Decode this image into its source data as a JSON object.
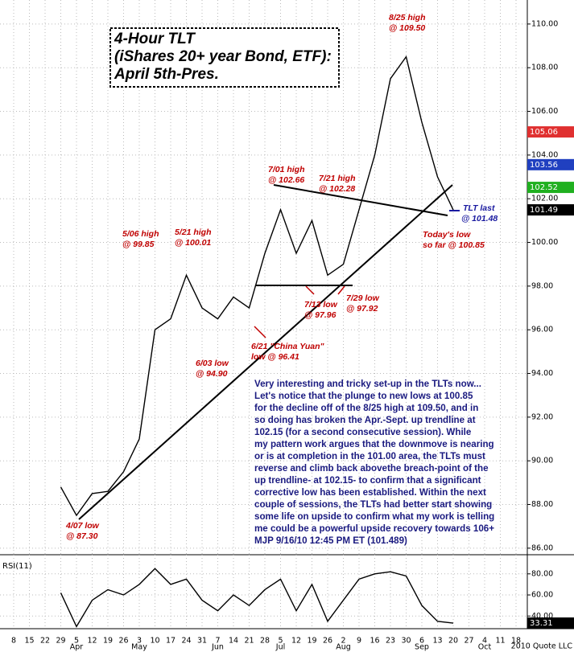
{
  "chart_data": {
    "type": "line",
    "title_lines": [
      "4-Hour TLT",
      "(iShares 20+ year Bond, ETF):",
      "April 5th-Pres."
    ],
    "categories": [
      "8",
      "15",
      "22",
      "29",
      "5",
      "12",
      "19",
      "26",
      "3",
      "10",
      "17",
      "24",
      "31",
      "7",
      "14",
      "21",
      "28",
      "5",
      "12",
      "19",
      "26",
      "2",
      "9",
      "16",
      "23",
      "30",
      "6",
      "13",
      "20",
      "27",
      "4",
      "11",
      "18"
    ],
    "months": [
      null,
      null,
      null,
      null,
      "Apr",
      null,
      null,
      null,
      "May",
      null,
      null,
      null,
      null,
      "Jun",
      null,
      null,
      null,
      "Jul",
      null,
      null,
      null,
      "Aug",
      null,
      null,
      null,
      null,
      "Sep",
      null,
      null,
      null,
      "Oct",
      null,
      null
    ],
    "ylim": [
      85.7,
      111.1
    ],
    "yticks": [
      {
        "value": 86,
        "label": "86.00"
      },
      {
        "value": 88,
        "label": "88.00"
      },
      {
        "value": 90,
        "label": "90.00"
      },
      {
        "value": 92,
        "label": "92.00"
      },
      {
        "value": 94,
        "label": "94.00"
      },
      {
        "value": 96,
        "label": "96.00"
      },
      {
        "value": 98,
        "label": "98.00"
      },
      {
        "value": 100,
        "label": "100.00"
      },
      {
        "value": 102,
        "label": "102.00"
      },
      {
        "value": 104,
        "label": "104.00"
      },
      {
        "value": 106,
        "label": "106.00"
      },
      {
        "value": 108,
        "label": "108.00"
      },
      {
        "value": 110,
        "label": "110.00"
      }
    ],
    "grid": true,
    "series": [
      {
        "color": "#000000",
        "values": [
          null,
          null,
          null,
          88.8,
          87.5,
          88.5,
          88.6,
          89.5,
          91,
          96,
          96.5,
          98.5,
          97,
          96.5,
          97.5,
          97,
          99.5,
          101.5,
          99.5,
          101,
          98.5,
          99,
          101.5,
          104,
          107.5,
          108.5,
          105.5,
          103,
          101.49,
          null,
          null,
          null,
          null
        ]
      }
    ],
    "last_tags": [
      {
        "value": 105.06,
        "color": "#e03030"
      },
      {
        "value": 103.56,
        "color": "#2040c0"
      },
      {
        "value": 102.52,
        "color": "#20b020"
      },
      {
        "value": 101.49,
        "color": "#000000"
      }
    ],
    "annotations": [
      [
        "8/25 high",
        "@ 109.50"
      ],
      [
        "7/01 high",
        "@ 102.66"
      ],
      [
        "7/21 high",
        "@ 102.28"
      ],
      [
        "5/06 high",
        "@ 99.85"
      ],
      [
        "5/21 high",
        "@ 100.01"
      ],
      [
        "6/03 low",
        "@ 94.90"
      ],
      [
        "6/21 \"China Yuan\"",
        "low @ 96.41"
      ],
      [
        "7/13 low",
        "@ 97.96"
      ],
      [
        "7/29 low",
        "@ 97.92"
      ],
      [
        "4/07 low",
        "@ 87.30"
      ],
      [
        "Today's low",
        "so far @ 100.85"
      ],
      [
        "TLT last",
        "@ 101.48"
      ]
    ],
    "commentary": [
      "Very interesting and tricky set-up in the TLTs now...",
      "Let's notice that the plunge to new lows at 100.85",
      "for the decline off of the 8/25 high at 109.50, and in",
      "so doing has broken the Apr.-Sept. up trendline at",
      "102.15 (for a second consecutive session). While",
      "my pattern work argues that the downmove is nearing",
      "or is at completion in the 101.00 area, the TLTs must",
      "reverse and climb back abovethe breach-point of the",
      "up trendline- at 102.15- to confirm that a significant",
      "corrective low has been established. Within the next",
      "couple of sessions, the TLTs had better start showing",
      "some life on upside to confirm what my work is telling",
      "me could be a powerful upside recovery towards 106+",
      "MJP 9/16/10  12:45 PM ET  (101.489)"
    ],
    "rsi": {
      "title": "RSI(11)",
      "ylim": [
        28,
        89
      ],
      "yticks": [
        {
          "value": 40,
          "label": "40.00"
        },
        {
          "value": 60,
          "label": "60.00"
        },
        {
          "value": 80,
          "label": "80.00"
        }
      ],
      "color": "#000000",
      "values": [
        null,
        null,
        null,
        62,
        30,
        55,
        65,
        60,
        70,
        85,
        70,
        75,
        55,
        45,
        60,
        50,
        65,
        75,
        45,
        70,
        35,
        55,
        75,
        80,
        82,
        78,
        50,
        35,
        33.31,
        null,
        null,
        null,
        null
      ],
      "last_tag": 33.31
    },
    "footer": "2010 Quote LLC"
  }
}
